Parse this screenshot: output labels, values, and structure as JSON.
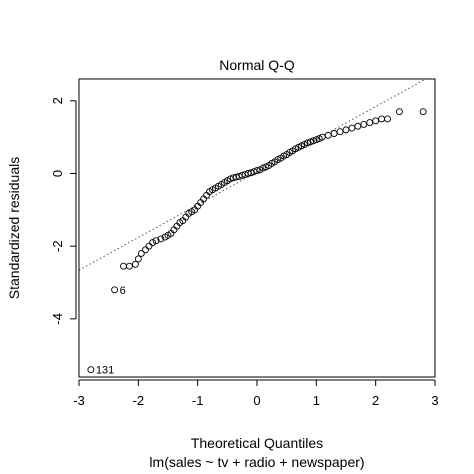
{
  "chart_data": {
    "type": "scatter",
    "title": "Normal Q-Q",
    "xlabel": "Theoretical Quantiles",
    "subtitle": "lm(sales ~ tv + radio + newspaper)",
    "ylabel": "Standardized residuals",
    "xlim": [
      -3,
      3
    ],
    "ylim": [
      -5.6,
      2.6
    ],
    "xticks": [
      -3,
      -2,
      -1,
      0,
      1,
      2,
      3
    ],
    "yticks": [
      -4,
      -2,
      0,
      2
    ],
    "reference_line": {
      "slope": 0.9,
      "intercept": 0.04
    },
    "labeled_points": [
      {
        "label": "131",
        "x": -2.8,
        "y": -5.4
      },
      {
        "label": "6",
        "x": -2.4,
        "y": -3.2
      }
    ],
    "points": [
      [
        -2.8,
        -5.4
      ],
      [
        -2.4,
        -3.2
      ],
      [
        -2.25,
        -2.55
      ],
      [
        -2.15,
        -2.55
      ],
      [
        -2.05,
        -2.5
      ],
      [
        -2.0,
        -2.35
      ],
      [
        -1.95,
        -2.2
      ],
      [
        -1.88,
        -2.1
      ],
      [
        -1.82,
        -2.0
      ],
      [
        -1.76,
        -1.9
      ],
      [
        -1.7,
        -1.85
      ],
      [
        -1.62,
        -1.8
      ],
      [
        -1.55,
        -1.75
      ],
      [
        -1.5,
        -1.7
      ],
      [
        -1.45,
        -1.65
      ],
      [
        -1.4,
        -1.55
      ],
      [
        -1.35,
        -1.45
      ],
      [
        -1.3,
        -1.35
      ],
      [
        -1.25,
        -1.3
      ],
      [
        -1.2,
        -1.2
      ],
      [
        -1.15,
        -1.1
      ],
      [
        -1.1,
        -1.05
      ],
      [
        -1.05,
        -1.0
      ],
      [
        -1.0,
        -0.9
      ],
      [
        -0.95,
        -0.8
      ],
      [
        -0.9,
        -0.7
      ],
      [
        -0.85,
        -0.6
      ],
      [
        -0.8,
        -0.5
      ],
      [
        -0.75,
        -0.45
      ],
      [
        -0.7,
        -0.4
      ],
      [
        -0.65,
        -0.35
      ],
      [
        -0.6,
        -0.3
      ],
      [
        -0.55,
        -0.25
      ],
      [
        -0.5,
        -0.2
      ],
      [
        -0.45,
        -0.15
      ],
      [
        -0.4,
        -0.12
      ],
      [
        -0.35,
        -0.1
      ],
      [
        -0.3,
        -0.08
      ],
      [
        -0.25,
        -0.05
      ],
      [
        -0.2,
        -0.03
      ],
      [
        -0.15,
        0.0
      ],
      [
        -0.1,
        0.02
      ],
      [
        -0.05,
        0.05
      ],
      [
        0.0,
        0.08
      ],
      [
        0.05,
        0.1
      ],
      [
        0.1,
        0.15
      ],
      [
        0.15,
        0.18
      ],
      [
        0.2,
        0.22
      ],
      [
        0.25,
        0.28
      ],
      [
        0.3,
        0.32
      ],
      [
        0.35,
        0.38
      ],
      [
        0.4,
        0.42
      ],
      [
        0.45,
        0.48
      ],
      [
        0.5,
        0.52
      ],
      [
        0.55,
        0.58
      ],
      [
        0.6,
        0.62
      ],
      [
        0.65,
        0.68
      ],
      [
        0.7,
        0.72
      ],
      [
        0.75,
        0.76
      ],
      [
        0.8,
        0.8
      ],
      [
        0.85,
        0.84
      ],
      [
        0.9,
        0.87
      ],
      [
        0.95,
        0.9
      ],
      [
        1.0,
        0.93
      ],
      [
        1.05,
        0.96
      ],
      [
        1.1,
        1.0
      ],
      [
        1.2,
        1.05
      ],
      [
        1.3,
        1.1
      ],
      [
        1.4,
        1.15
      ],
      [
        1.5,
        1.2
      ],
      [
        1.6,
        1.25
      ],
      [
        1.7,
        1.3
      ],
      [
        1.8,
        1.35
      ],
      [
        1.9,
        1.4
      ],
      [
        2.0,
        1.45
      ],
      [
        2.1,
        1.5
      ],
      [
        2.2,
        1.5
      ],
      [
        2.4,
        1.7
      ],
      [
        2.8,
        1.7
      ]
    ]
  }
}
